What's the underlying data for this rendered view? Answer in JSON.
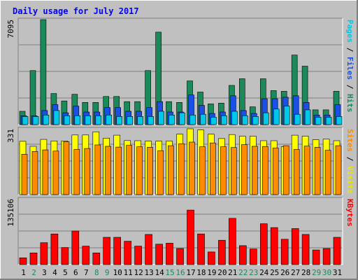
{
  "chart_data": {
    "type": "bar",
    "title": "Daily usage for July 2017",
    "days": [
      "1",
      "2",
      "3",
      "4",
      "5",
      "6",
      "7",
      "8",
      "9",
      "10",
      "11",
      "12",
      "13",
      "14",
      "15",
      "16",
      "17",
      "18",
      "19",
      "20",
      "21",
      "22",
      "23",
      "24",
      "25",
      "26",
      "27",
      "28",
      "29",
      "30",
      "31"
    ],
    "weekend_days": [
      "2",
      "8",
      "9",
      "15",
      "16",
      "22",
      "23",
      "29",
      "30"
    ],
    "panels": [
      {
        "name": "hits-files-pages",
        "max_label": "7095",
        "ymax": 7095,
        "axis_label_parts": [
          {
            "text": "Pages",
            "color": "#00c8e8"
          },
          {
            "text": " / ",
            "color": "#000000"
          },
          {
            "text": "Files",
            "color": "#1a50e6"
          },
          {
            "text": " / ",
            "color": "#000000"
          },
          {
            "text": "Hits",
            "color": "#1b8a5a"
          }
        ],
        "series": [
          {
            "name": "Hits",
            "color": "#1b8a5a",
            "values": [
              900,
              3650,
              7095,
              2100,
              1600,
              2050,
              1500,
              1500,
              1900,
              1900,
              1550,
              1550,
              3650,
              6250,
              1550,
              1500,
              2950,
              2200,
              1400,
              1450,
              2650,
              3100,
              1200,
              3100,
              2300,
              2250,
              4700,
              3950,
              1000,
              1000,
              2250
            ]
          },
          {
            "name": "Files",
            "color": "#1a50e6",
            "values": [
              600,
              600,
              950,
              1350,
              800,
              1250,
              850,
              850,
              1150,
              1150,
              900,
              900,
              1150,
              1550,
              850,
              850,
              2000,
              1300,
              750,
              850,
              1950,
              950,
              750,
              1750,
              1750,
              1850,
              1950,
              1500,
              650,
              650,
              1350
            ]
          },
          {
            "name": "Pages",
            "color": "#00c8e8",
            "values": [
              550,
              550,
              650,
              950,
              600,
              600,
              600,
              600,
              650,
              550,
              550,
              550,
              550,
              900,
              650,
              800,
              650,
              700,
              500,
              600,
              900,
              600,
              550,
              800,
              1050,
              1250,
              700,
              1000,
              500,
              500,
              550
            ]
          }
        ]
      },
      {
        "name": "visits-sites",
        "max_label": "331",
        "ymax": 331,
        "axis_label_parts": [
          {
            "text": "Sites",
            "color": "#ff8c00"
          },
          {
            "text": " / ",
            "color": "#000000"
          },
          {
            "text": "Visits",
            "color": "#e8e800"
          }
        ],
        "series": [
          {
            "name": "Visits",
            "color": "#ffff00",
            "values": [
              268,
              243,
              278,
              270,
              270,
              300,
              300,
              316,
              284,
              299,
              272,
              271,
              269,
              269,
              270,
              304,
              331,
              325,
              304,
              282,
              302,
              294,
              294,
              271,
              271,
              241,
              299,
              294,
              276,
              279,
              271
            ]
          },
          {
            "name": "Sites",
            "color": "#ff8c00",
            "values": [
              203,
              217,
              225,
              219,
              266,
              227,
              232,
              250,
              243,
              239,
              248,
              241,
              238,
              221,
              246,
              256,
              264,
              241,
              260,
              241,
              237,
              251,
              243,
              242,
              234,
              246,
              227,
              244,
              238,
              223,
              246
            ]
          }
        ]
      },
      {
        "name": "kbytes",
        "max_label": "135106",
        "ymax": 135106,
        "axis_label_parts": [
          {
            "text": "KBytes",
            "color": "#ff0000"
          }
        ],
        "series": [
          {
            "name": "KBytes",
            "color": "#ff0000",
            "values": [
              14000,
              24000,
              45000,
              63000,
              35000,
              69000,
              38000,
              24000,
              56000,
              56000,
              48000,
              38000,
              62000,
              42000,
              44000,
              33000,
              112000,
              63000,
              26000,
              50000,
              95000,
              39000,
              32000,
              84000,
              76000,
              52000,
              74000,
              62000,
              30000,
              33000,
              56000
            ]
          }
        ]
      }
    ]
  }
}
